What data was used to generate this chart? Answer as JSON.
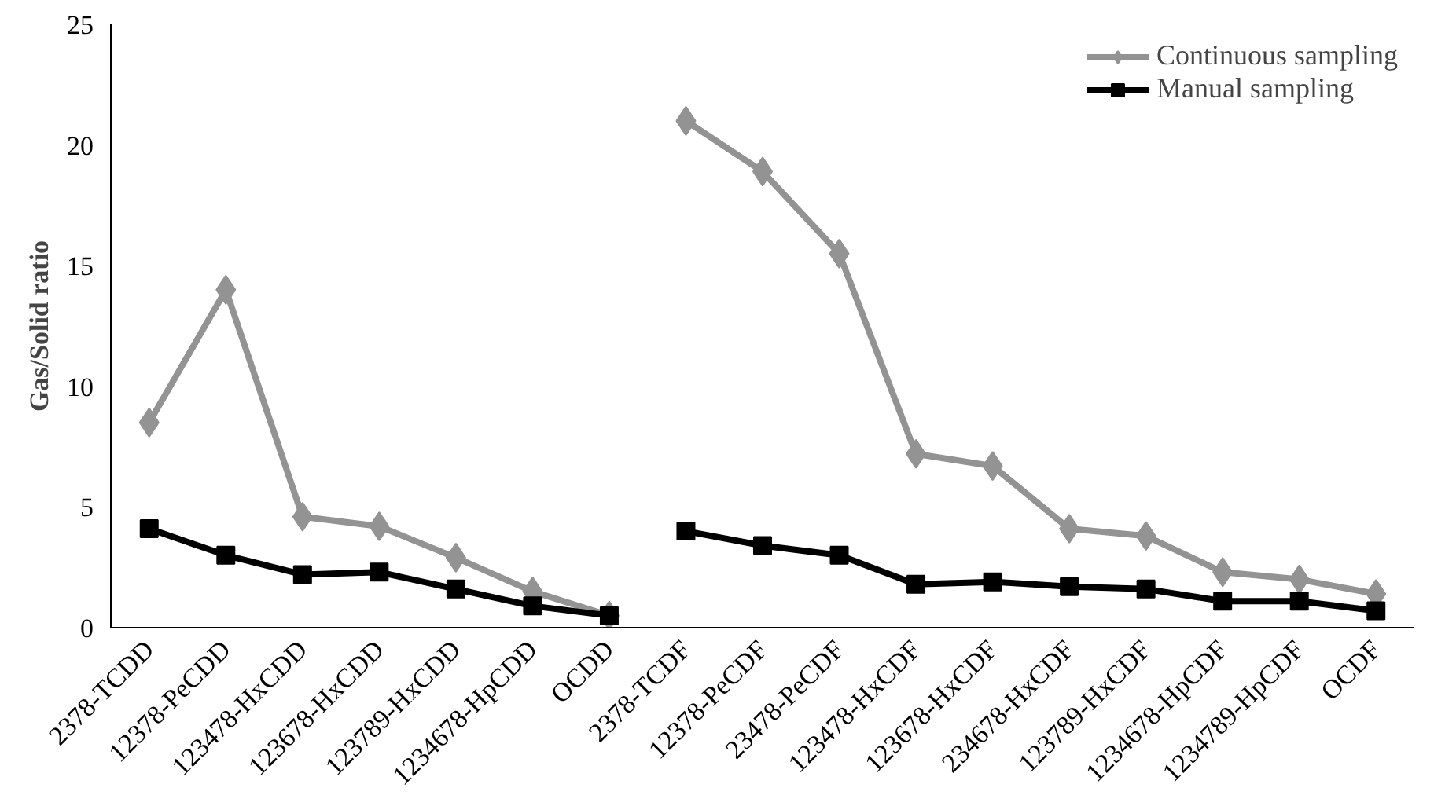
{
  "chart_data": {
    "type": "line",
    "ylabel": "Gas/Solid ratio",
    "categories": [
      "2378-TCDD",
      "12378-PeCDD",
      "123478-HxCDD",
      "123678-HxCDD",
      "123789-HxCDD",
      "1234678-HpCDD",
      "OCDD",
      "2378-TCDF",
      "12378-PeCDF",
      "23478-PeCDF",
      "123478-HxCDF",
      "123678-HxCDF",
      "234678-HxCDF",
      "123789-HxCDF",
      "1234678-HpCDF",
      "1234789-HpCDF",
      "OCDF"
    ],
    "series": [
      {
        "name": "Continuous sampling",
        "color": "#939393",
        "marker": "diamond",
        "values": [
          8.5,
          14.0,
          4.6,
          4.2,
          2.9,
          1.5,
          0.5,
          null,
          null,
          null,
          null,
          null,
          null,
          null,
          null,
          null,
          null
        ]
      },
      {
        "name": "Manual sampling",
        "color": "#000000",
        "marker": "square",
        "values": [
          4.1,
          3.0,
          2.2,
          2.3,
          1.6,
          0.9,
          0.5,
          null,
          null,
          null,
          null,
          null,
          null,
          null,
          null,
          null,
          null
        ]
      },
      {
        "color": "#939393",
        "marker": "diamond",
        "values": [
          null,
          null,
          null,
          null,
          null,
          null,
          null,
          21.0,
          18.9,
          15.5,
          7.2,
          6.7,
          4.1,
          3.8,
          2.3,
          2.0,
          1.4
        ]
      },
      {
        "color": "#000000",
        "marker": "square",
        "values": [
          null,
          null,
          null,
          null,
          null,
          null,
          null,
          4.0,
          3.4,
          3.0,
          1.8,
          1.9,
          1.7,
          1.6,
          1.1,
          1.1,
          0.7
        ]
      }
    ],
    "ylim": [
      0,
      25
    ],
    "yticks": [
      0,
      5,
      10,
      15,
      20,
      25
    ],
    "grid": false,
    "legend": "top right",
    "line_style": "solid"
  }
}
